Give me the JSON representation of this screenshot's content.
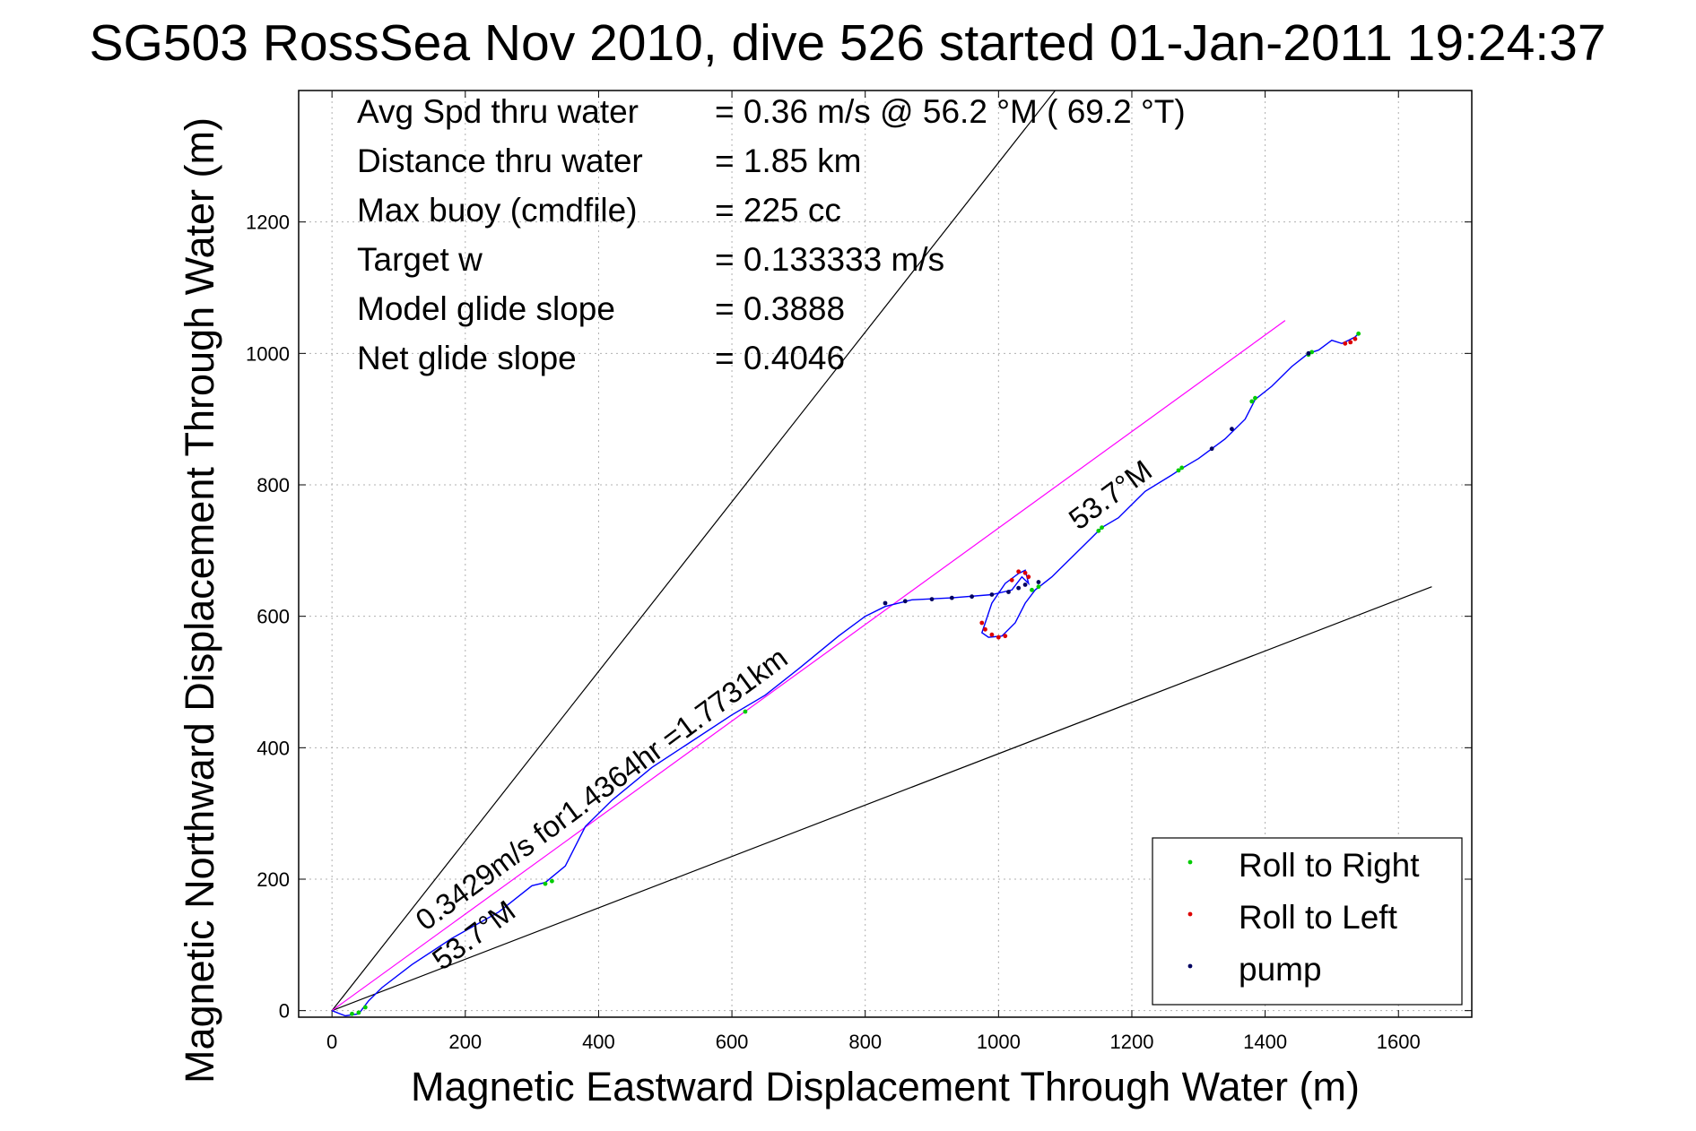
{
  "chart_data": {
    "type": "line",
    "title": "SG503 RossSea Nov 2010, dive 526 started 01-Jan-2011 19:24:37",
    "xlabel": "Magnetic Eastward Displacement Through Water (m)",
    "ylabel": "Magnetic Northward Displacement Through Water (m)",
    "xlim": [
      -50,
      1710
    ],
    "ylim": [
      -10,
      1400
    ],
    "grid": true,
    "legend_position": "bottom-right",
    "x_ticks": [
      "0",
      "200",
      "400",
      "600",
      "800",
      "1000",
      "1200",
      "1400",
      "1600"
    ],
    "y_ticks": [
      "0",
      "200",
      "400",
      "600",
      "800",
      "1000",
      "1200"
    ],
    "info_lines": [
      {
        "label": "Avg Spd thru water",
        "value": "=  0.36 m/s @  56.2 °M ( 69.2 °T)"
      },
      {
        "label": "Distance thru water",
        "value": "=  1.85 km"
      },
      {
        "label": "Max buoy (cmdfile)",
        "value": "= 225 cc"
      },
      {
        "label": "Target w",
        "value": "= 0.133333 m/s"
      },
      {
        "label": "Model glide slope",
        "value": "= 0.3888"
      },
      {
        "label": "Net glide slope",
        "value": "= 0.4046"
      }
    ],
    "annotations": [
      {
        "text": "0.3429m/s for1.4364hr =1.7731km",
        "x": 140,
        "y": 120,
        "angle_deg": 36.5
      },
      {
        "text": "53.7°M",
        "x": 165,
        "y": 60,
        "angle_deg": 36.5
      },
      {
        "text": "53.7°M",
        "x": 1120,
        "y": 730,
        "angle_deg": 36.5
      }
    ],
    "reference_lines": [
      {
        "name": "upper-bound",
        "color": "#000000",
        "x": [
          0,
          1085
        ],
        "y": [
          0,
          1400
        ]
      },
      {
        "name": "lower-bound",
        "color": "#000000",
        "x": [
          0,
          1650
        ],
        "y": [
          0,
          645
        ]
      },
      {
        "name": "net-track",
        "color": "#ff00ff",
        "x": [
          0,
          1430
        ],
        "y": [
          0,
          1050
        ]
      }
    ],
    "series": [
      {
        "name": "track",
        "color": "#0000ff",
        "x": [
          0,
          20,
          40,
          55,
          75,
          120,
          180,
          250,
          300,
          320,
          350,
          380,
          420,
          480,
          540,
          600,
          650,
          700,
          760,
          800,
          830,
          870,
          930,
          990,
          1020,
          1035,
          1045,
          1040,
          1030,
          1010,
          990,
          980,
          975,
          985,
          1005,
          1025,
          1040,
          1055,
          1080,
          1110,
          1140,
          1155,
          1180,
          1220,
          1260,
          1275,
          1300,
          1340,
          1370,
          1385,
          1410,
          1440,
          1465,
          1480,
          1500,
          1515,
          1525,
          1535,
          1540
        ],
        "y": [
          0,
          -8,
          -5,
          15,
          35,
          70,
          110,
          150,
          190,
          195,
          220,
          280,
          320,
          370,
          410,
          450,
          480,
          520,
          570,
          600,
          615,
          625,
          628,
          633,
          640,
          660,
          650,
          670,
          665,
          650,
          620,
          590,
          575,
          568,
          570,
          590,
          620,
          640,
          660,
          690,
          720,
          735,
          750,
          790,
          815,
          825,
          840,
          870,
          900,
          930,
          950,
          980,
          1000,
          1005,
          1020,
          1015,
          1020,
          1025,
          1030
        ]
      },
      {
        "name": "Roll to Right",
        "color": "#00cc00",
        "x": [
          30,
          40,
          50,
          320,
          330,
          620,
          1050,
          1060,
          1150,
          1155,
          1270,
          1275,
          1380,
          1385,
          1465,
          1470,
          1540
        ],
        "y": [
          -5,
          -3,
          5,
          193,
          197,
          455,
          640,
          645,
          730,
          735,
          822,
          826,
          927,
          932,
          998,
          1002,
          1030
        ]
      },
      {
        "name": "Roll to Left",
        "color": "#dd0000",
        "x": [
          975,
          980,
          990,
          1000,
          1010,
          1020,
          1030,
          1040,
          1045,
          1520,
          1528,
          1535
        ],
        "y": [
          590,
          580,
          572,
          568,
          570,
          655,
          668,
          666,
          660,
          1015,
          1017,
          1022
        ]
      },
      {
        "name": "pump",
        "color": "#000060",
        "x": [
          830,
          860,
          900,
          930,
          960,
          990,
          1015,
          1030,
          1040,
          1060,
          1320,
          1350,
          1465
        ],
        "y": [
          620,
          623,
          626,
          628,
          630,
          633,
          637,
          643,
          648,
          652,
          855,
          885,
          1000
        ]
      }
    ]
  }
}
